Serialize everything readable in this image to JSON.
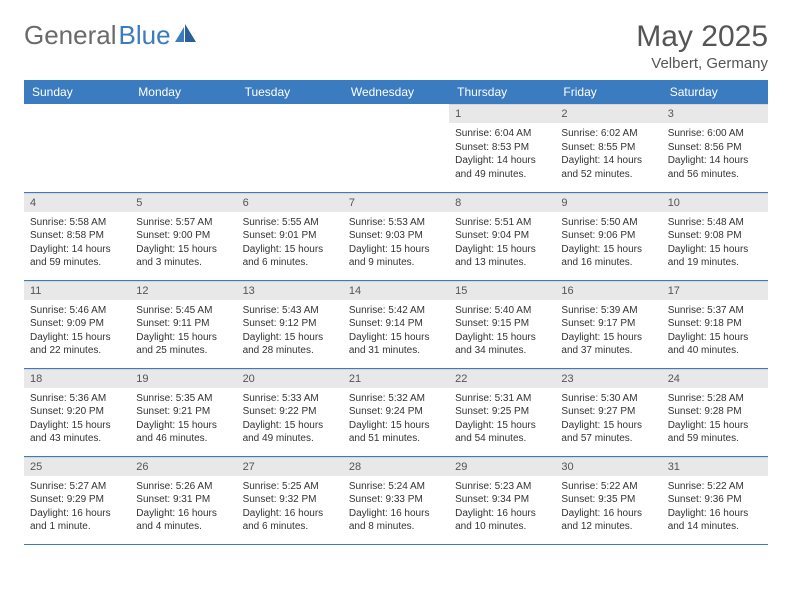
{
  "brand": {
    "part1": "General",
    "part2": "Blue"
  },
  "title": "May 2025",
  "subtitle": "Velbert, Germany",
  "colors": {
    "header_bg": "#3b7bbf",
    "header_text": "#ffffff",
    "daynum_bg": "#e8e8e8",
    "body_text": "#333333",
    "rule": "#3b7bbf",
    "logo_gray": "#6a6a6a",
    "logo_blue": "#3b7bbf"
  },
  "weekdays": [
    "Sunday",
    "Monday",
    "Tuesday",
    "Wednesday",
    "Thursday",
    "Friday",
    "Saturday"
  ],
  "weeks": [
    [
      {
        "empty": true
      },
      {
        "empty": true
      },
      {
        "empty": true
      },
      {
        "empty": true
      },
      {
        "day": "1",
        "sunrise": "Sunrise: 6:04 AM",
        "sunset": "Sunset: 8:53 PM",
        "daylight": "Daylight: 14 hours and 49 minutes."
      },
      {
        "day": "2",
        "sunrise": "Sunrise: 6:02 AM",
        "sunset": "Sunset: 8:55 PM",
        "daylight": "Daylight: 14 hours and 52 minutes."
      },
      {
        "day": "3",
        "sunrise": "Sunrise: 6:00 AM",
        "sunset": "Sunset: 8:56 PM",
        "daylight": "Daylight: 14 hours and 56 minutes."
      }
    ],
    [
      {
        "day": "4",
        "sunrise": "Sunrise: 5:58 AM",
        "sunset": "Sunset: 8:58 PM",
        "daylight": "Daylight: 14 hours and 59 minutes."
      },
      {
        "day": "5",
        "sunrise": "Sunrise: 5:57 AM",
        "sunset": "Sunset: 9:00 PM",
        "daylight": "Daylight: 15 hours and 3 minutes."
      },
      {
        "day": "6",
        "sunrise": "Sunrise: 5:55 AM",
        "sunset": "Sunset: 9:01 PM",
        "daylight": "Daylight: 15 hours and 6 minutes."
      },
      {
        "day": "7",
        "sunrise": "Sunrise: 5:53 AM",
        "sunset": "Sunset: 9:03 PM",
        "daylight": "Daylight: 15 hours and 9 minutes."
      },
      {
        "day": "8",
        "sunrise": "Sunrise: 5:51 AM",
        "sunset": "Sunset: 9:04 PM",
        "daylight": "Daylight: 15 hours and 13 minutes."
      },
      {
        "day": "9",
        "sunrise": "Sunrise: 5:50 AM",
        "sunset": "Sunset: 9:06 PM",
        "daylight": "Daylight: 15 hours and 16 minutes."
      },
      {
        "day": "10",
        "sunrise": "Sunrise: 5:48 AM",
        "sunset": "Sunset: 9:08 PM",
        "daylight": "Daylight: 15 hours and 19 minutes."
      }
    ],
    [
      {
        "day": "11",
        "sunrise": "Sunrise: 5:46 AM",
        "sunset": "Sunset: 9:09 PM",
        "daylight": "Daylight: 15 hours and 22 minutes."
      },
      {
        "day": "12",
        "sunrise": "Sunrise: 5:45 AM",
        "sunset": "Sunset: 9:11 PM",
        "daylight": "Daylight: 15 hours and 25 minutes."
      },
      {
        "day": "13",
        "sunrise": "Sunrise: 5:43 AM",
        "sunset": "Sunset: 9:12 PM",
        "daylight": "Daylight: 15 hours and 28 minutes."
      },
      {
        "day": "14",
        "sunrise": "Sunrise: 5:42 AM",
        "sunset": "Sunset: 9:14 PM",
        "daylight": "Daylight: 15 hours and 31 minutes."
      },
      {
        "day": "15",
        "sunrise": "Sunrise: 5:40 AM",
        "sunset": "Sunset: 9:15 PM",
        "daylight": "Daylight: 15 hours and 34 minutes."
      },
      {
        "day": "16",
        "sunrise": "Sunrise: 5:39 AM",
        "sunset": "Sunset: 9:17 PM",
        "daylight": "Daylight: 15 hours and 37 minutes."
      },
      {
        "day": "17",
        "sunrise": "Sunrise: 5:37 AM",
        "sunset": "Sunset: 9:18 PM",
        "daylight": "Daylight: 15 hours and 40 minutes."
      }
    ],
    [
      {
        "day": "18",
        "sunrise": "Sunrise: 5:36 AM",
        "sunset": "Sunset: 9:20 PM",
        "daylight": "Daylight: 15 hours and 43 minutes."
      },
      {
        "day": "19",
        "sunrise": "Sunrise: 5:35 AM",
        "sunset": "Sunset: 9:21 PM",
        "daylight": "Daylight: 15 hours and 46 minutes."
      },
      {
        "day": "20",
        "sunrise": "Sunrise: 5:33 AM",
        "sunset": "Sunset: 9:22 PM",
        "daylight": "Daylight: 15 hours and 49 minutes."
      },
      {
        "day": "21",
        "sunrise": "Sunrise: 5:32 AM",
        "sunset": "Sunset: 9:24 PM",
        "daylight": "Daylight: 15 hours and 51 minutes."
      },
      {
        "day": "22",
        "sunrise": "Sunrise: 5:31 AM",
        "sunset": "Sunset: 9:25 PM",
        "daylight": "Daylight: 15 hours and 54 minutes."
      },
      {
        "day": "23",
        "sunrise": "Sunrise: 5:30 AM",
        "sunset": "Sunset: 9:27 PM",
        "daylight": "Daylight: 15 hours and 57 minutes."
      },
      {
        "day": "24",
        "sunrise": "Sunrise: 5:28 AM",
        "sunset": "Sunset: 9:28 PM",
        "daylight": "Daylight: 15 hours and 59 minutes."
      }
    ],
    [
      {
        "day": "25",
        "sunrise": "Sunrise: 5:27 AM",
        "sunset": "Sunset: 9:29 PM",
        "daylight": "Daylight: 16 hours and 1 minute."
      },
      {
        "day": "26",
        "sunrise": "Sunrise: 5:26 AM",
        "sunset": "Sunset: 9:31 PM",
        "daylight": "Daylight: 16 hours and 4 minutes."
      },
      {
        "day": "27",
        "sunrise": "Sunrise: 5:25 AM",
        "sunset": "Sunset: 9:32 PM",
        "daylight": "Daylight: 16 hours and 6 minutes."
      },
      {
        "day": "28",
        "sunrise": "Sunrise: 5:24 AM",
        "sunset": "Sunset: 9:33 PM",
        "daylight": "Daylight: 16 hours and 8 minutes."
      },
      {
        "day": "29",
        "sunrise": "Sunrise: 5:23 AM",
        "sunset": "Sunset: 9:34 PM",
        "daylight": "Daylight: 16 hours and 10 minutes."
      },
      {
        "day": "30",
        "sunrise": "Sunrise: 5:22 AM",
        "sunset": "Sunset: 9:35 PM",
        "daylight": "Daylight: 16 hours and 12 minutes."
      },
      {
        "day": "31",
        "sunrise": "Sunrise: 5:22 AM",
        "sunset": "Sunset: 9:36 PM",
        "daylight": "Daylight: 16 hours and 14 minutes."
      }
    ]
  ]
}
